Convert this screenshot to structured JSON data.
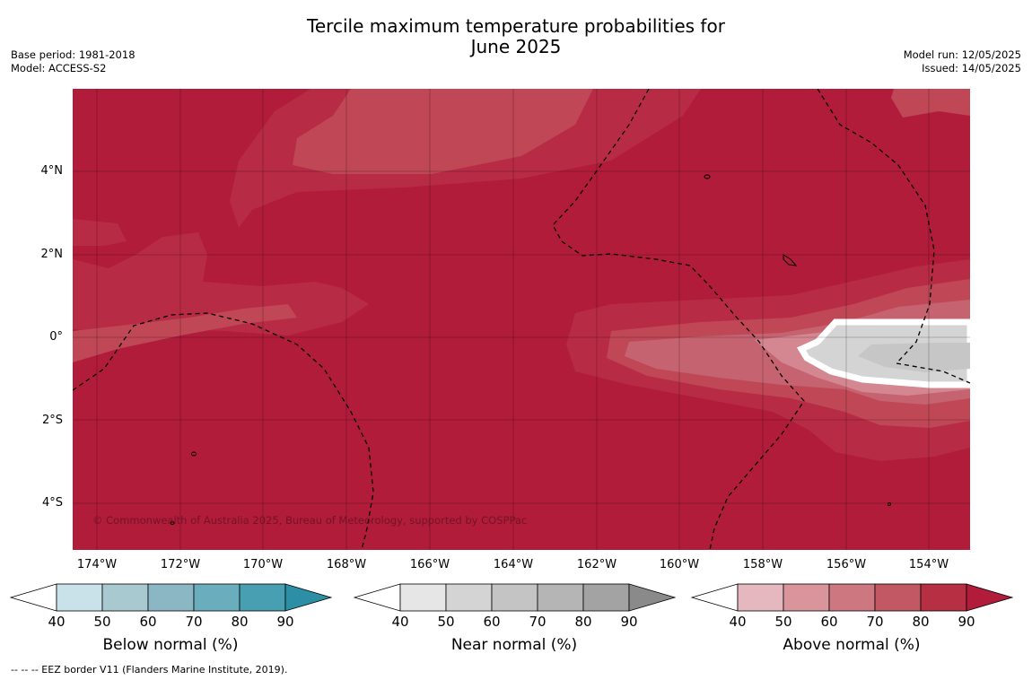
{
  "title_line1": "Tercile maximum temperature probabilities for",
  "title_line2": "June 2025",
  "meta_left": {
    "base_period": "Base period: 1981-2018",
    "model": "Model: ACCESS-S2"
  },
  "meta_right": {
    "model_run": "Model run: 12/05/2025",
    "issued": "Issued: 14/05/2025"
  },
  "lat_labels": [
    "4°N",
    "2°N",
    "0°",
    "2°S",
    "4°S"
  ],
  "lon_labels": [
    "174°W",
    "172°W",
    "170°W",
    "168°W",
    "166°W",
    "164°W",
    "162°W",
    "160°W",
    "158°W",
    "156°W",
    "154°W"
  ],
  "copyright": "© Commonwealth of Australia 2025, Bureau of Meteorology, supported by COSPPac",
  "colorbars": [
    {
      "title": "Below normal (%)",
      "ticks": [
        "40",
        "50",
        "60",
        "70",
        "80",
        "90"
      ],
      "colors": [
        "#ffffff",
        "#c9e2e9",
        "#a9c9d1",
        "#8bb6c4",
        "#6aadbd",
        "#479fb1",
        "#2d8fa5"
      ]
    },
    {
      "title": "Near normal (%)",
      "ticks": [
        "40",
        "50",
        "60",
        "70",
        "80",
        "90"
      ],
      "colors": [
        "#ffffff",
        "#e6e6e6",
        "#d4d4d4",
        "#c4c4c4",
        "#b5b5b5",
        "#a3a3a3",
        "#8a8a8a"
      ]
    },
    {
      "title": "Above normal (%)",
      "ticks": [
        "40",
        "50",
        "60",
        "70",
        "80",
        "90"
      ],
      "colors": [
        "#ffffff",
        "#e4b8be",
        "#d9949c",
        "#cd7780",
        "#c25863",
        "#b72f43",
        "#b01c3a"
      ]
    }
  ],
  "footer": "--  --  -- EEZ border V11 (Flanders Marine Institute, 2019)."
}
